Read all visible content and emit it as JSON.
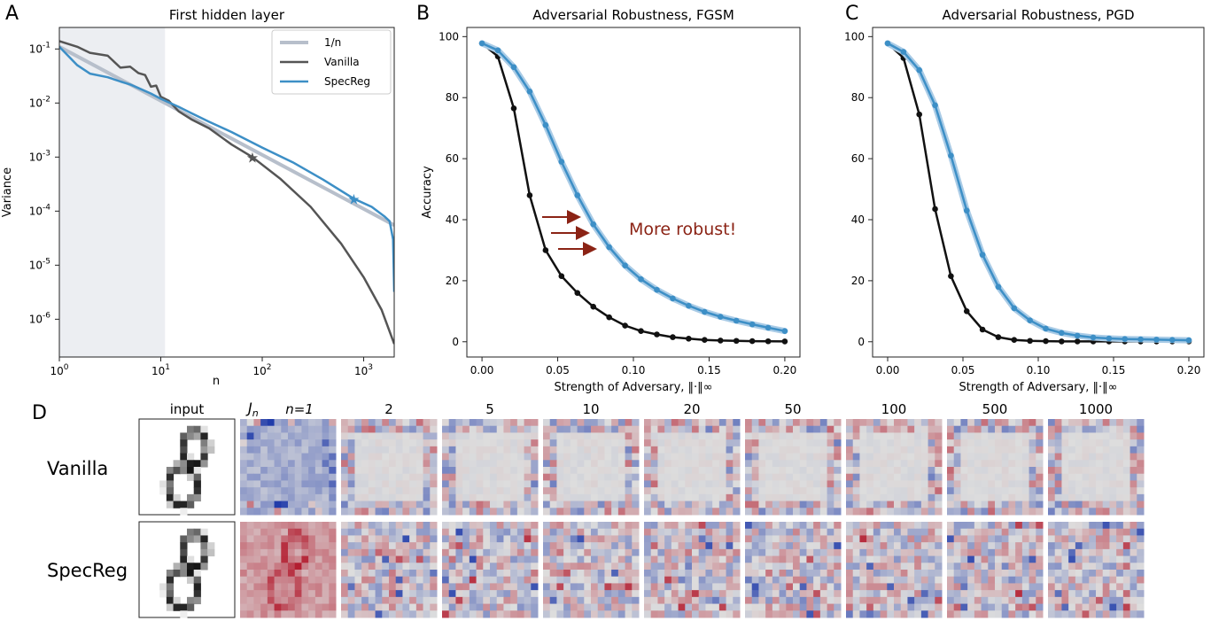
{
  "panel_letters": [
    "A",
    "B",
    "C",
    "D"
  ],
  "colors": {
    "vanilla": "#555555",
    "vanilla_robust": "#111111",
    "specreg": "#3d8fc6",
    "specreg_band": "#a9cbe6",
    "inv_n": "#b7bfcb",
    "shade": "#eceef2",
    "arrow": "#8b2315",
    "annotation": "#8b2315"
  },
  "chart_data": [
    {
      "type": "line",
      "title": "First hidden layer",
      "xlabel": "n",
      "ylabel": "Variance",
      "xscale": "log",
      "yscale": "log",
      "xlim": [
        1,
        2000
      ],
      "ylim": [
        2e-07,
        0.25
      ],
      "xticks": [
        "10^0",
        "10^1",
        "10^2",
        "10^3"
      ],
      "yticks": [
        "10^-1",
        "10^-2",
        "10^-3",
        "10^-4",
        "10^-5",
        "10^-6"
      ],
      "shaded_region": [
        1,
        11
      ],
      "legend": {
        "placement": "top-right",
        "entries": [
          "1/n",
          "Vanilla",
          "SpecReg"
        ]
      },
      "series": [
        {
          "name": "1/n",
          "x": [
            1,
            2000
          ],
          "y": [
            0.11,
            5.5e-05
          ]
        },
        {
          "name": "Vanilla",
          "x": [
            1,
            1.5,
            2,
            3,
            4,
            5,
            6,
            7,
            8,
            9,
            10,
            12,
            15,
            20,
            30,
            50,
            80,
            150,
            300,
            600,
            1000,
            1500,
            2000
          ],
          "y": [
            0.14,
            0.11,
            0.085,
            0.075,
            0.045,
            0.047,
            0.036,
            0.033,
            0.02,
            0.021,
            0.013,
            0.011,
            0.007,
            0.005,
            0.0034,
            0.0017,
            0.001,
            0.0004,
            0.00012,
            2.5e-05,
            6e-06,
            1.5e-06,
            3.5e-07
          ],
          "marker": {
            "x": 80,
            "y": 0.001
          }
        },
        {
          "name": "SpecReg",
          "x": [
            1,
            1.5,
            2,
            3,
            4,
            5,
            6,
            8,
            10,
            15,
            20,
            30,
            50,
            100,
            200,
            400,
            800,
            1200,
            1600,
            1800,
            1950,
            2000
          ],
          "y": [
            0.11,
            0.05,
            0.035,
            0.03,
            0.025,
            0.022,
            0.019,
            0.015,
            0.012,
            0.0085,
            0.0065,
            0.0045,
            0.0029,
            0.0015,
            0.0008,
            0.00038,
            0.00017,
            0.00012,
            8e-05,
            6.5e-05,
            3e-05,
            3.2e-06
          ],
          "marker": {
            "x": 800,
            "y": 0.00017
          }
        }
      ]
    },
    {
      "type": "line",
      "title": "Adversarial Robustness, FGSM",
      "xlabel": "Strength of Adversary, ‖·‖∞",
      "ylabel": "Accuracy",
      "xlim": [
        -0.01,
        0.21
      ],
      "ylim": [
        -5,
        103
      ],
      "xticks": [
        "0.00",
        "0.05",
        "0.10",
        "0.15",
        "0.20"
      ],
      "yticks": [
        "0",
        "20",
        "40",
        "60",
        "80",
        "100"
      ],
      "x": [
        0,
        0.0105,
        0.021,
        0.0315,
        0.042,
        0.0525,
        0.063,
        0.0735,
        0.084,
        0.0945,
        0.105,
        0.1155,
        0.126,
        0.1365,
        0.147,
        0.1575,
        0.168,
        0.1785,
        0.189,
        0.2
      ],
      "series": [
        {
          "name": "Vanilla",
          "values": [
            97.8,
            93.5,
            76.5,
            48,
            30,
            21.5,
            16,
            11.5,
            8,
            5.3,
            3.5,
            2.4,
            1.5,
            1,
            0.6,
            0.4,
            0.3,
            0.2,
            0.15,
            0.1
          ]
        },
        {
          "name": "SpecReg",
          "values": [
            97.8,
            95.5,
            90,
            82,
            71,
            59,
            48,
            38.5,
            31,
            25,
            20.5,
            17,
            14.2,
            11.8,
            9.8,
            8.2,
            6.9,
            5.7,
            4.6,
            3.5
          ]
        }
      ],
      "annotation": "More robust!"
    },
    {
      "type": "line",
      "title": "Adversarial Robustness, PGD",
      "xlabel": "Strength of Adversary, ‖·‖∞",
      "ylabel": "",
      "xlim": [
        -0.01,
        0.21
      ],
      "ylim": [
        -5,
        103
      ],
      "xticks": [
        "0.00",
        "0.05",
        "0.10",
        "0.15",
        "0.20"
      ],
      "yticks": [
        "0",
        "20",
        "40",
        "60",
        "80",
        "100"
      ],
      "x": [
        0,
        0.0105,
        0.021,
        0.0315,
        0.042,
        0.0525,
        0.063,
        0.0735,
        0.084,
        0.0945,
        0.105,
        0.1155,
        0.126,
        0.1365,
        0.147,
        0.1575,
        0.168,
        0.1785,
        0.189,
        0.2
      ],
      "series": [
        {
          "name": "Vanilla",
          "values": [
            97.8,
            93,
            74.5,
            43.5,
            21.5,
            10,
            4,
            1.5,
            0.6,
            0.3,
            0.2,
            0.1,
            0.1,
            0.1,
            0.1,
            0.1,
            0.1,
            0.1,
            0.1,
            0.1
          ]
        },
        {
          "name": "SpecReg",
          "values": [
            97.8,
            95,
            89,
            77.5,
            61,
            43,
            28.5,
            18,
            11,
            7,
            4.3,
            2.9,
            2,
            1.4,
            1.1,
            0.9,
            0.8,
            0.7,
            0.6,
            0.5
          ]
        }
      ]
    }
  ],
  "panel_d": {
    "column_headers": [
      "input",
      "n=1",
      "2",
      "5",
      "10",
      "20",
      "50",
      "100",
      "500",
      "1000"
    ],
    "jacobian_symbol": "J",
    "jacobian_subscript": "n",
    "rows": [
      "Vanilla",
      "SpecReg"
    ]
  }
}
